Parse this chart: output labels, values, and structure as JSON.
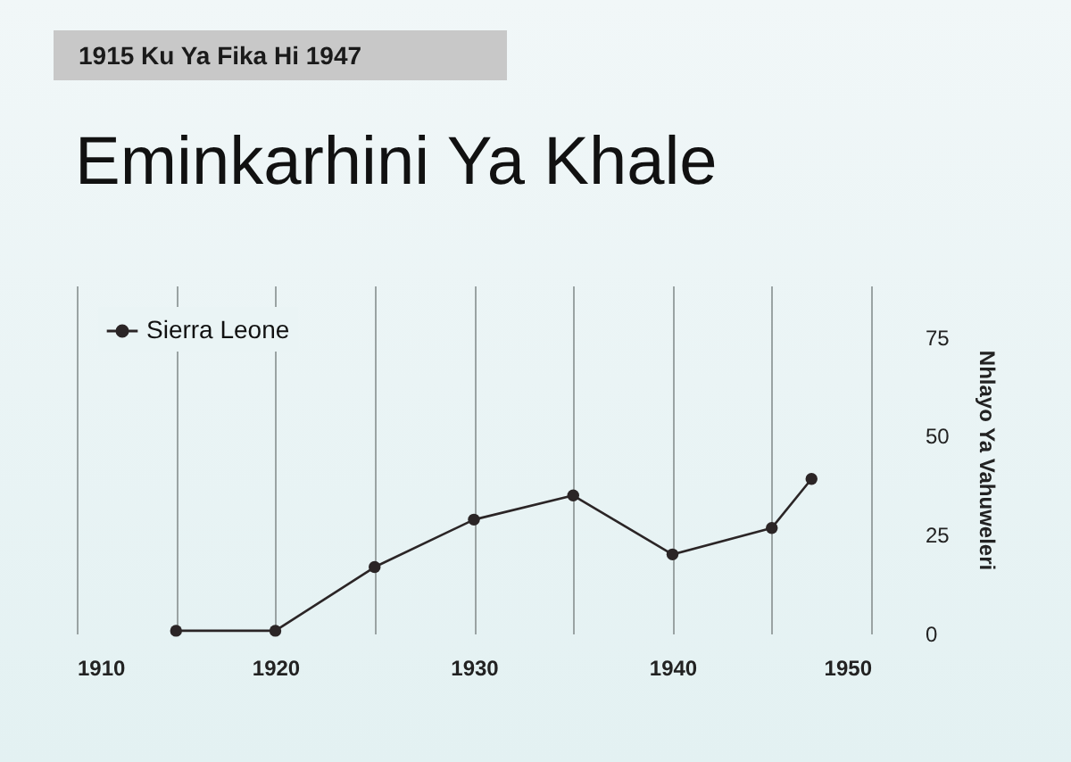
{
  "chart_data": {
    "type": "line",
    "title": "Eminkarhini Ya Khale",
    "subtitle": "1915 Ku Ya Fika Hi 1947",
    "ylabel": "Nhlayo Ya Vahuweleri",
    "x": [
      1915,
      1920,
      1925,
      1930,
      1935,
      1940,
      1945,
      1947
    ],
    "series": [
      {
        "name": "Sierra Leone",
        "color": "#2b2526",
        "values": [
          0.7,
          0.7,
          16.8,
          28.8,
          34.9,
          20,
          26.7,
          39.1
        ]
      }
    ],
    "xlim": [
      1910,
      1950
    ],
    "xticks": [
      1910,
      {
        "value": 1915,
        "label": null
      },
      1920,
      {
        "value": 1925,
        "label": null
      },
      1930,
      {
        "value": 1935,
        "label": null
      },
      1940,
      {
        "value": 1945,
        "label": null
      },
      1950
    ],
    "ylim": [
      0,
      88
    ],
    "yticks": [
      0,
      25,
      50,
      75
    ],
    "grid": "x",
    "legend": "top left",
    "marker": "circle"
  }
}
